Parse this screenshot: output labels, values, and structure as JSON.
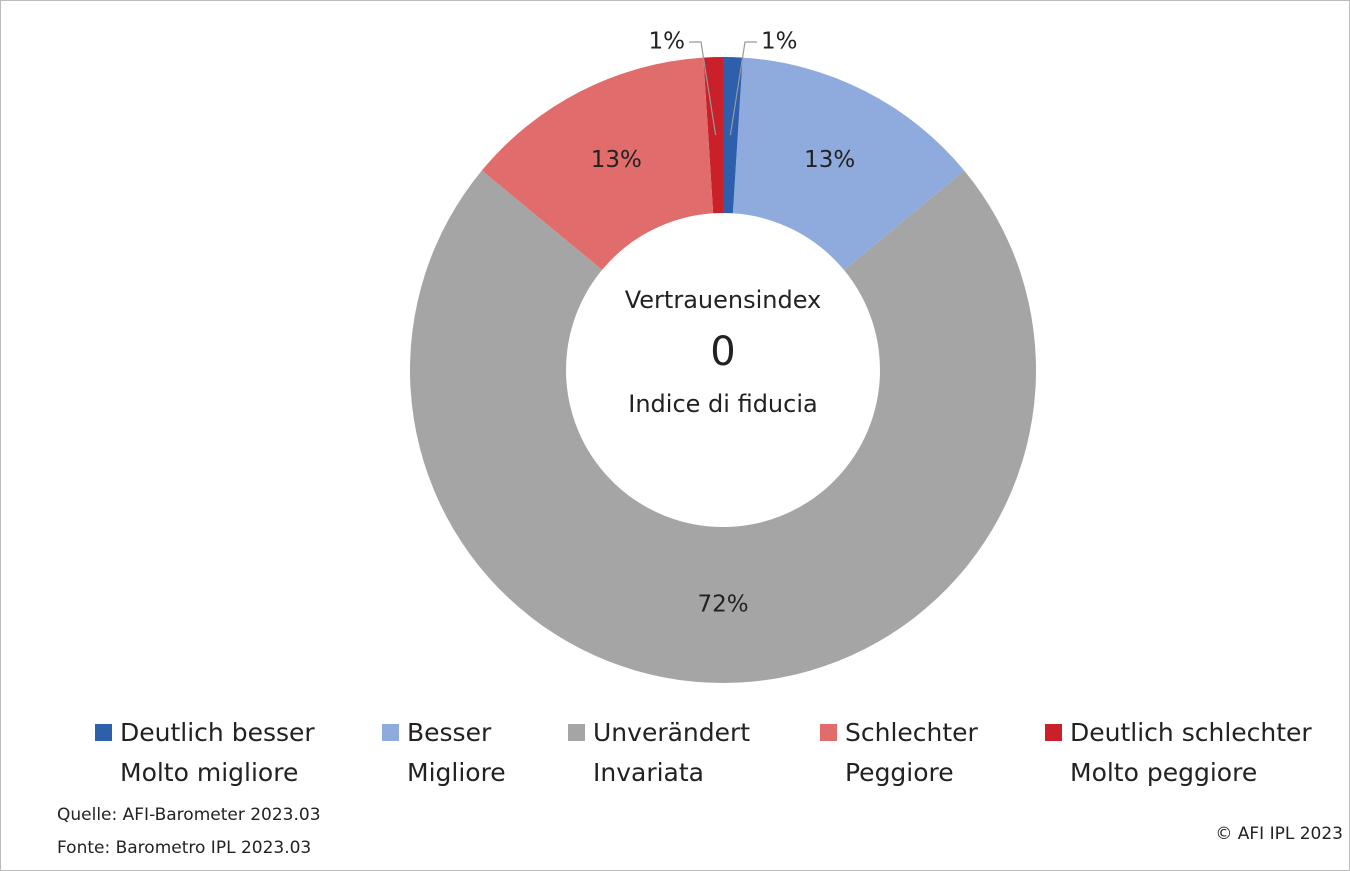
{
  "chart_data": {
    "type": "donut",
    "categories": [
      [
        "Deutlich besser",
        "Molto migliore"
      ],
      [
        "Besser",
        "Migliore"
      ],
      [
        "Unverändert",
        "Invariata"
      ],
      [
        "Schlechter",
        "Peggiore"
      ],
      [
        "Deutlich schlechter",
        "Molto peggiore"
      ]
    ],
    "values": [
      1,
      13,
      72,
      13,
      1
    ],
    "value_labels": [
      "1%",
      "13%",
      "72%",
      "13%",
      "1%"
    ],
    "colors": [
      "#2e5fad",
      "#8faadc",
      "#a5a5a5",
      "#e06c6c",
      "#c9202a"
    ],
    "center_text": [
      "Vertrauensindex",
      "Indice di fiducia"
    ],
    "center_value": 0,
    "source": [
      "Quelle: AFI-Barometer 2023.03",
      "Fonte: Barometro IPL 2023.03"
    ],
    "copyright": "© AFI IPL 2023",
    "legend": "bottom"
  }
}
